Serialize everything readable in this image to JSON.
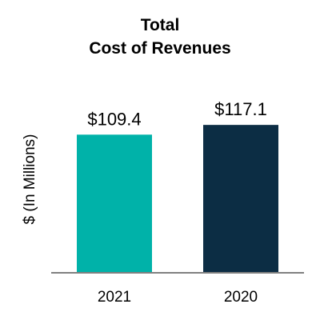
{
  "chart_data": {
    "type": "bar",
    "title": [
      "Total",
      "Cost of Revenues"
    ],
    "ylabel": "$ (In Millions)",
    "xlabel": "",
    "categories": [
      "2021",
      "2020"
    ],
    "values": [
      109.4,
      117.1
    ],
    "value_labels": [
      "$109.4",
      "$117.1"
    ],
    "colors": [
      "#00b2a9",
      "#0c2d44"
    ],
    "axis_color": "#808080",
    "ylim": [
      0,
      140
    ],
    "grid": false,
    "legend": "none"
  }
}
